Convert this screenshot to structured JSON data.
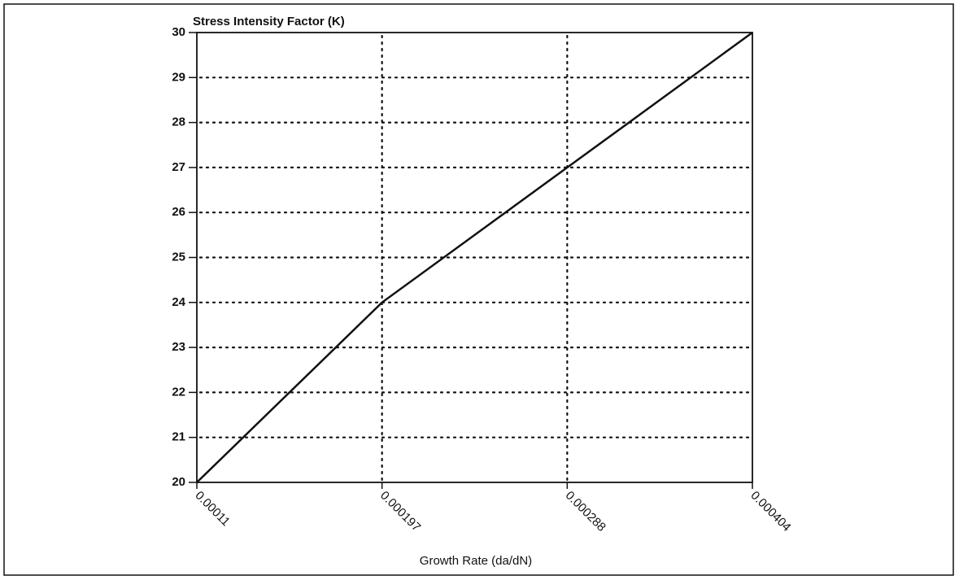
{
  "chart_data": {
    "type": "line",
    "y_label": "Stress Intensity Factor (K)",
    "x_label": "Growth Rate (da/dN)",
    "categories": [
      "0.00011",
      "0.000197",
      "0.000288",
      "0.000404"
    ],
    "values": [
      20,
      24,
      27,
      30
    ],
    "color": "#111111",
    "ylim": [
      20,
      30
    ],
    "yticks": [
      20,
      21,
      22,
      23,
      24,
      25,
      26,
      27,
      28,
      29,
      30
    ],
    "grid": true
  }
}
